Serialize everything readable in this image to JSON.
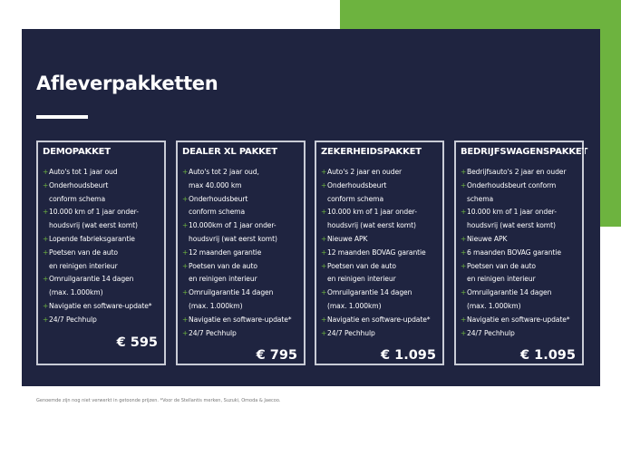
{
  "title": "Afleverpakketten",
  "colors": {
    "navy": "#1f2440",
    "green": "#6db33f"
  },
  "packages": [
    {
      "name": "DEMOPAKKET",
      "items": [
        [
          "Auto's tot 1 jaar oud"
        ],
        [
          "Onderhoudsbeurt",
          "conform schema"
        ],
        [
          "10.000 km of 1 jaar onder-",
          "houdsvrij (wat eerst komt)"
        ],
        [
          "Lopende fabrieksgarantie"
        ],
        [
          "Poetsen van de auto",
          "en reinigen interieur"
        ],
        [
          "Omruilgarantie 14 dagen",
          "(max. 1.000km)"
        ],
        [
          "Navigatie en software-update*"
        ],
        [
          "24/7 Pechhulp"
        ]
      ],
      "price": "€ 595"
    },
    {
      "name": "DEALER XL PAKKET",
      "items": [
        [
          "Auto's tot 2 jaar oud,",
          "max 40.000 km"
        ],
        [
          "Onderhoudsbeurt",
          "conform schema"
        ],
        [
          "10.000km of 1 jaar onder-",
          "houdsvrij (wat eerst komt)"
        ],
        [
          "12 maanden garantie"
        ],
        [
          "Poetsen van de auto",
          "en reinigen interieur"
        ],
        [
          "Omruilgarantie 14 dagen",
          "(max. 1.000km)"
        ],
        [
          "Navigatie en software-update*"
        ],
        [
          "24/7 Pechhulp"
        ]
      ],
      "price": "€ 795"
    },
    {
      "name": "ZEKERHEIDSPAKKET",
      "items": [
        [
          "Auto's 2 jaar en ouder"
        ],
        [
          "Onderhoudsbeurt",
          "conform schema"
        ],
        [
          "10.000 km of 1 jaar onder-",
          "houdsvrij (wat eerst komt)"
        ],
        [
          "Nieuwe APK"
        ],
        [
          "12 maanden BOVAG garantie"
        ],
        [
          "Poetsen van de auto",
          "en reinigen interieur"
        ],
        [
          "Omruilgarantie 14 dagen",
          "(max. 1.000km)"
        ],
        [
          "Navigatie en software-update*"
        ],
        [
          "24/7 Pechhulp"
        ]
      ],
      "price": "€ 1.095"
    },
    {
      "name": "BEDRIJFSWAGENSPAKKET",
      "items": [
        [
          "Bedrijfsauto's 2 jaar en ouder"
        ],
        [
          "Onderhoudsbeurt conform",
          "schema"
        ],
        [
          "10.000 km of 1 jaar onder-",
          "houdsvrij (wat eerst komt)"
        ],
        [
          "Nieuwe APK"
        ],
        [
          "6 maanden BOVAG garantie"
        ],
        [
          "Poetsen van de auto",
          "en reinigen interieur"
        ],
        [
          "Omruilgarantie 14 dagen",
          "(max. 1.000km)"
        ],
        [
          "Navigatie en software-update*"
        ],
        [
          "24/7 Pechhulp"
        ]
      ],
      "price": "€ 1.095"
    }
  ],
  "footnote": "Genoemde zijn nog niet verwerkt in getoonde prijzen. *Voor de Stellantis merken, Suzuki, Omoda & Jaecoo."
}
